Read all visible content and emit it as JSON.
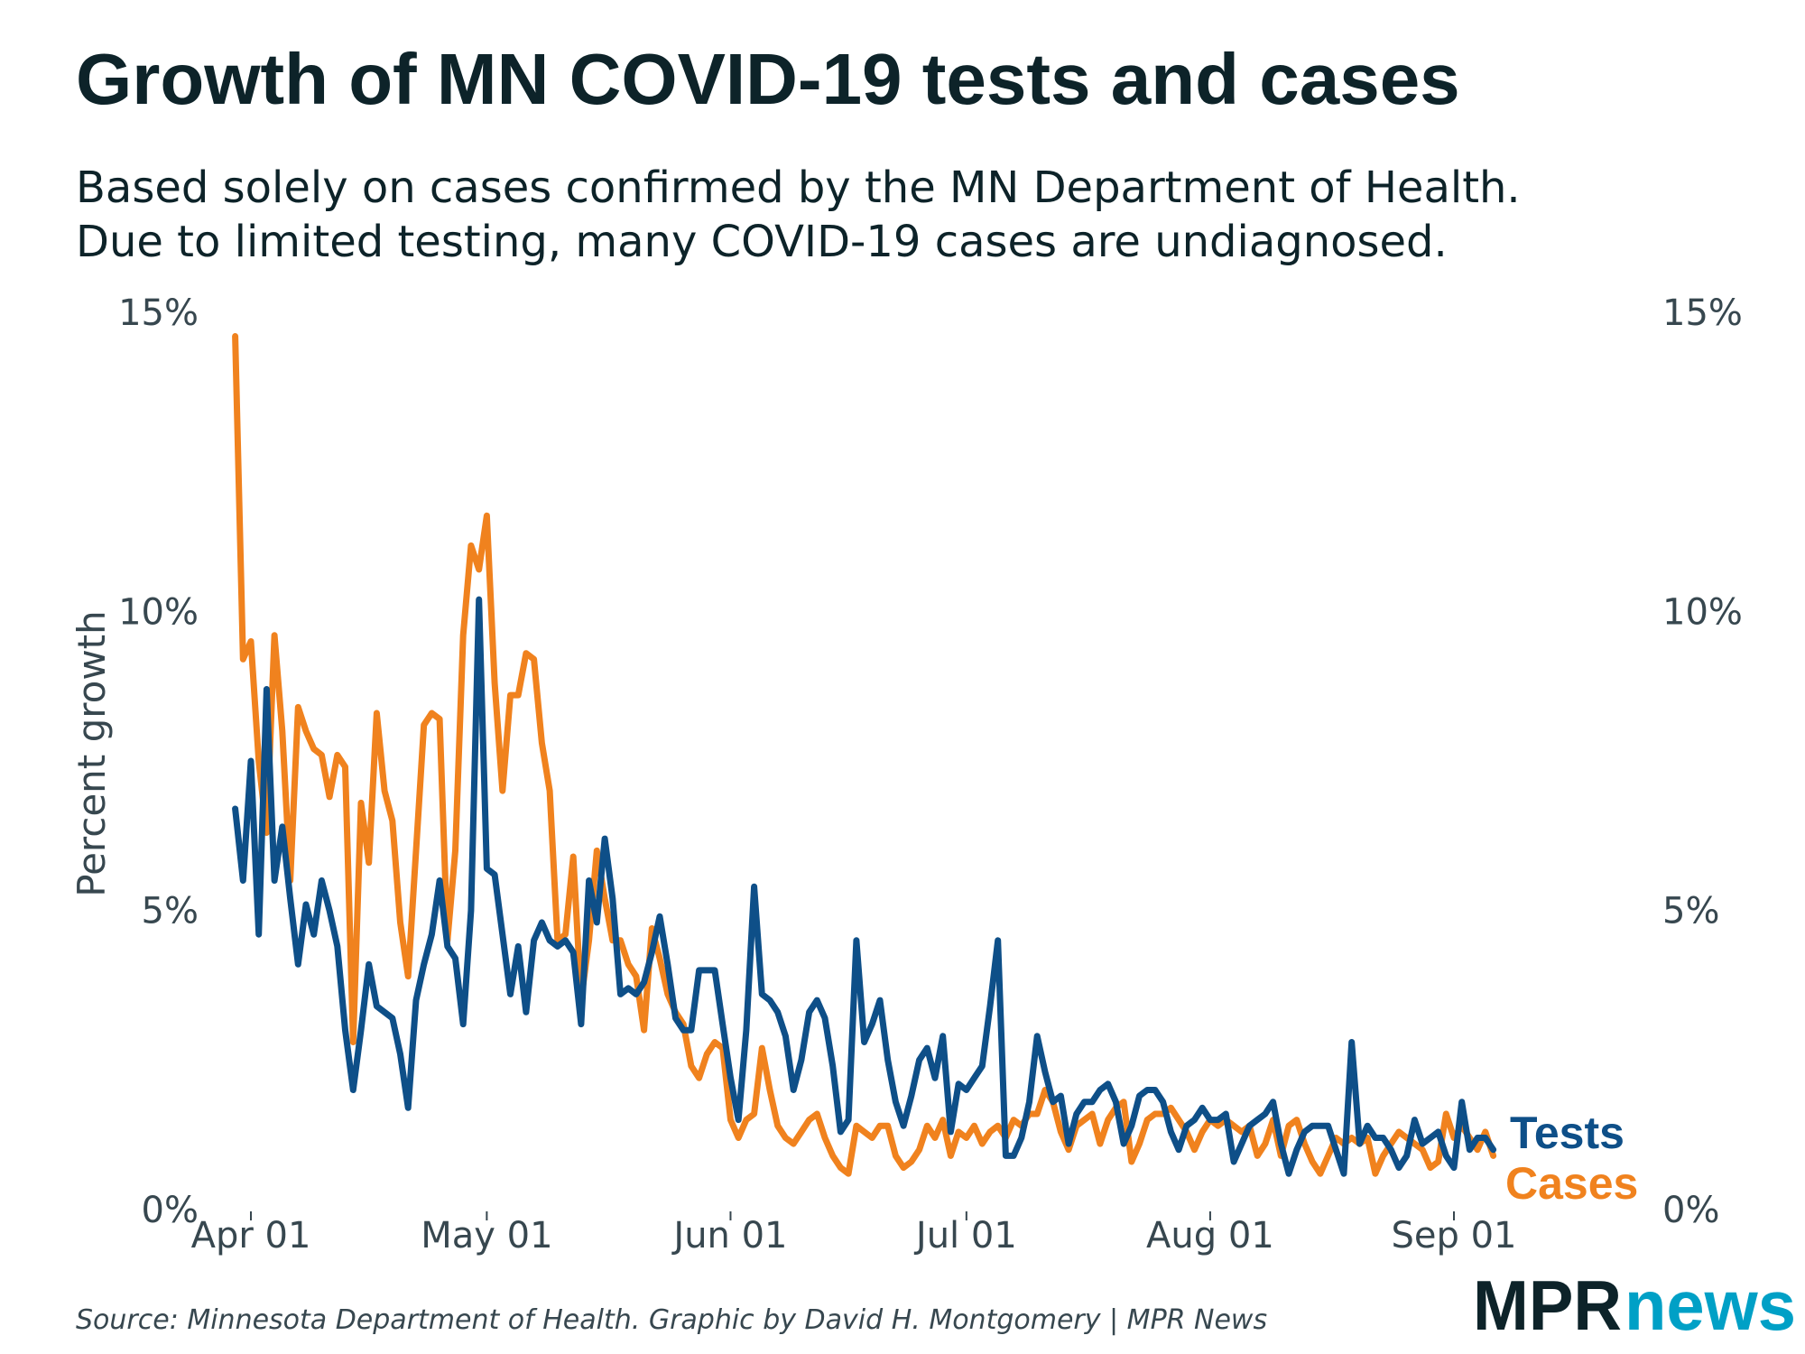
{
  "title": "Growth of MN COVID-19 tests and cases",
  "subtitle_lines": [
    "Based solely on cases confirmed by the MN Department of Health.",
    "Due to limited testing, many COVID-19 cases are undiagnosed."
  ],
  "source": "Source: Minnesota Department of Health. Graphic by David H. Montgomery | MPR News",
  "logo": {
    "part1": "MPR",
    "part2": "news",
    "color1": "#0d2329",
    "color2": "#00a0c6"
  },
  "chart_data": {
    "type": "line",
    "title": "Growth of MN COVID-19 tests and cases",
    "xlabel": "",
    "ylabel": "Percent growth",
    "ylim": [
      0,
      15
    ],
    "y_ticks": [
      0,
      5,
      10,
      15
    ],
    "y_tick_labels": [
      "0%",
      "5%",
      "10%",
      "15%"
    ],
    "y_axis_both_sides": true,
    "x_ticks": [
      "Apr 01",
      "May 01",
      "Jun 01",
      "Jul 01",
      "Aug 01",
      "Sep 01"
    ],
    "grid": false,
    "legend": "direct labels at right end of lines",
    "x": [
      "Mar 30",
      "Mar 31",
      "Apr 01",
      "Apr 02",
      "Apr 03",
      "Apr 04",
      "Apr 05",
      "Apr 06",
      "Apr 07",
      "Apr 08",
      "Apr 09",
      "Apr 10",
      "Apr 11",
      "Apr 12",
      "Apr 13",
      "Apr 14",
      "Apr 15",
      "Apr 16",
      "Apr 17",
      "Apr 18",
      "Apr 19",
      "Apr 20",
      "Apr 21",
      "Apr 22",
      "Apr 23",
      "Apr 24",
      "Apr 25",
      "Apr 26",
      "Apr 27",
      "Apr 28",
      "Apr 29",
      "Apr 30",
      "May 01",
      "May 02",
      "May 03",
      "May 04",
      "May 05",
      "May 06",
      "May 07",
      "May 08",
      "May 09",
      "May 10",
      "May 11",
      "May 12",
      "May 13",
      "May 14",
      "May 15",
      "May 16",
      "May 17",
      "May 18",
      "May 19",
      "May 20",
      "May 21",
      "May 22",
      "May 23",
      "May 24",
      "May 25",
      "May 26",
      "May 27",
      "May 28",
      "May 29",
      "May 30",
      "May 31",
      "Jun 01",
      "Jun 02",
      "Jun 03",
      "Jun 04",
      "Jun 05",
      "Jun 06",
      "Jun 07",
      "Jun 08",
      "Jun 09",
      "Jun 10",
      "Jun 11",
      "Jun 12",
      "Jun 13",
      "Jun 14",
      "Jun 15",
      "Jun 16",
      "Jun 17",
      "Jun 18",
      "Jun 19",
      "Jun 20",
      "Jun 21",
      "Jun 22",
      "Jun 23",
      "Jun 24",
      "Jun 25",
      "Jun 26",
      "Jun 27",
      "Jun 28",
      "Jun 29",
      "Jun 30",
      "Jul 01",
      "Jul 02",
      "Jul 03",
      "Jul 04",
      "Jul 05",
      "Jul 06",
      "Jul 07",
      "Jul 08",
      "Jul 09",
      "Jul 10",
      "Jul 11",
      "Jul 12",
      "Jul 13",
      "Jul 14",
      "Jul 15",
      "Jul 16",
      "Jul 17",
      "Jul 18",
      "Jul 19",
      "Jul 20",
      "Jul 21",
      "Jul 22",
      "Jul 23",
      "Jul 24",
      "Jul 25",
      "Jul 26",
      "Jul 27",
      "Jul 28",
      "Jul 29",
      "Jul 30",
      "Jul 31",
      "Aug 01",
      "Aug 02",
      "Aug 03",
      "Aug 04",
      "Aug 05",
      "Aug 06",
      "Aug 07",
      "Aug 08",
      "Aug 09",
      "Aug 10",
      "Aug 11",
      "Aug 12",
      "Aug 13",
      "Aug 14",
      "Aug 15",
      "Aug 16",
      "Aug 17",
      "Aug 18",
      "Aug 19",
      "Aug 20",
      "Aug 21",
      "Aug 22",
      "Aug 23",
      "Aug 24",
      "Aug 25",
      "Aug 26",
      "Aug 27",
      "Aug 28",
      "Aug 29",
      "Aug 30",
      "Aug 31",
      "Sep 01",
      "Sep 02",
      "Sep 03",
      "Sep 04",
      "Sep 05",
      "Sep 06"
    ],
    "series": [
      {
        "name": "Cases",
        "color": "#f0821e",
        "values": [
          14.6,
          9.2,
          9.5,
          7.5,
          6.3,
          9.6,
          8.0,
          5.5,
          8.4,
          8.0,
          7.7,
          7.6,
          6.9,
          7.6,
          7.4,
          2.8,
          6.8,
          5.8,
          8.3,
          7.0,
          6.5,
          4.8,
          3.9,
          6.0,
          8.1,
          8.3,
          8.2,
          4.5,
          6.0,
          9.6,
          11.1,
          10.7,
          11.6,
          8.8,
          7.0,
          8.6,
          8.6,
          9.3,
          9.2,
          7.8,
          7.0,
          4.5,
          4.6,
          5.9,
          3.5,
          4.5,
          6.0,
          5.2,
          4.5,
          4.5,
          4.1,
          3.9,
          3.0,
          4.7,
          4.2,
          3.6,
          3.3,
          3.1,
          2.4,
          2.2,
          2.6,
          2.8,
          2.7,
          1.5,
          1.2,
          1.5,
          1.6,
          2.7,
          2.0,
          1.4,
          1.2,
          1.1,
          1.3,
          1.5,
          1.6,
          1.2,
          0.9,
          0.7,
          0.6,
          1.4,
          1.3,
          1.2,
          1.4,
          1.4,
          0.9,
          0.7,
          0.8,
          1.0,
          1.4,
          1.2,
          1.5,
          0.9,
          1.3,
          1.2,
          1.4,
          1.1,
          1.3,
          1.4,
          1.2,
          1.5,
          1.4,
          1.6,
          1.6,
          2.0,
          1.8,
          1.3,
          1.0,
          1.4,
          1.5,
          1.6,
          1.1,
          1.5,
          1.7,
          1.8,
          0.8,
          1.1,
          1.5,
          1.6,
          1.6,
          1.7,
          1.5,
          1.3,
          1.0,
          1.3,
          1.5,
          1.4,
          1.5,
          1.4,
          1.3,
          1.4,
          0.9,
          1.1,
          1.5,
          0.9,
          1.4,
          1.5,
          1.1,
          0.8,
          0.6,
          0.9,
          1.2,
          1.1,
          1.2,
          1.1,
          1.2,
          0.6,
          0.9,
          1.1,
          1.3,
          1.2,
          1.1,
          1.0,
          0.7,
          0.8,
          1.6,
          1.2,
          1.4,
          1.2,
          1.0,
          1.3,
          0.9
        ]
      },
      {
        "name": "Tests",
        "color": "#0e4f88",
        "values": [
          6.7,
          5.5,
          7.5,
          4.6,
          8.7,
          5.5,
          6.4,
          5.2,
          4.1,
          5.1,
          4.6,
          5.5,
          5.0,
          4.4,
          3.0,
          2.0,
          3.0,
          4.1,
          3.4,
          3.3,
          3.2,
          2.6,
          1.7,
          3.5,
          4.1,
          4.6,
          5.5,
          4.4,
          4.2,
          3.1,
          5.0,
          10.2,
          5.7,
          5.6,
          4.6,
          3.6,
          4.4,
          3.3,
          4.5,
          4.8,
          4.5,
          4.4,
          4.5,
          4.3,
          3.1,
          5.5,
          4.8,
          6.2,
          5.2,
          3.6,
          3.7,
          3.6,
          3.8,
          4.3,
          4.9,
          4.1,
          3.2,
          3.0,
          3.0,
          4.0,
          4.0,
          4.0,
          3.1,
          2.2,
          1.5,
          3.0,
          5.4,
          3.6,
          3.5,
          3.3,
          2.9,
          2.0,
          2.5,
          3.3,
          3.5,
          3.2,
          2.4,
          1.3,
          1.5,
          4.5,
          2.8,
          3.1,
          3.5,
          2.5,
          1.8,
          1.4,
          1.9,
          2.5,
          2.7,
          2.2,
          2.9,
          1.3,
          2.1,
          2.0,
          2.2,
          2.4,
          3.4,
          4.5,
          0.9,
          0.9,
          1.2,
          1.8,
          2.9,
          2.3,
          1.8,
          1.9,
          1.1,
          1.6,
          1.8,
          1.8,
          2.0,
          2.1,
          1.8,
          1.1,
          1.4,
          1.9,
          2.0,
          2.0,
          1.8,
          1.3,
          1.0,
          1.4,
          1.5,
          1.7,
          1.5,
          1.5,
          1.6,
          0.8,
          1.1,
          1.4,
          1.5,
          1.6,
          1.8,
          1.1,
          0.6,
          1.0,
          1.3,
          1.4,
          1.4,
          1.4,
          1.0,
          0.6,
          2.8,
          1.1,
          1.4,
          1.2,
          1.2,
          1.0,
          0.7,
          0.9,
          1.5,
          1.1,
          1.2,
          1.3,
          0.9,
          0.7,
          1.8,
          1.0,
          1.2,
          1.2,
          1.0
        ]
      }
    ]
  }
}
